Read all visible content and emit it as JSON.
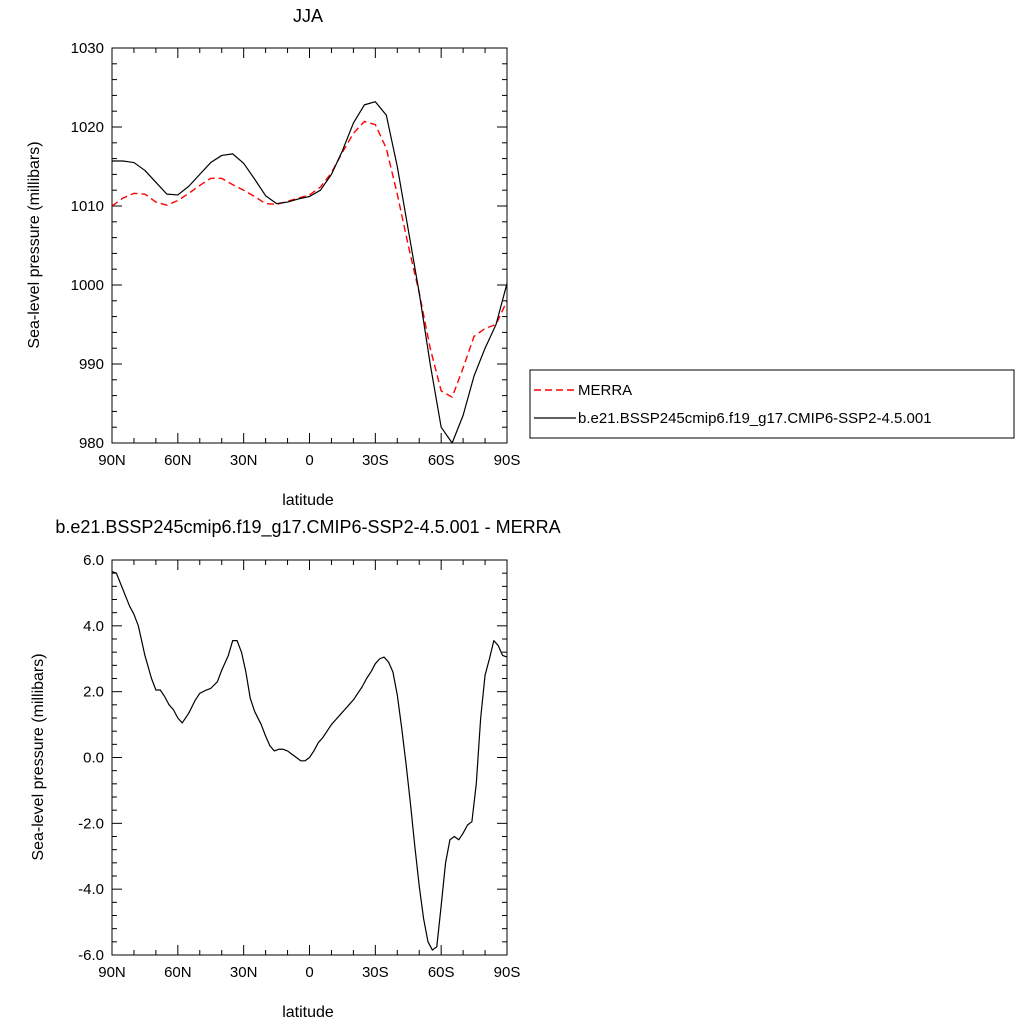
{
  "chart_data": [
    {
      "type": "line",
      "title": "JJA",
      "xlabel": "latitude",
      "ylabel": "Sea-level pressure (millibars)",
      "xlim": [
        90,
        -90
      ],
      "ylim": [
        980,
        1030
      ],
      "xticks": [
        90,
        60,
        30,
        0,
        -30,
        -60,
        -90
      ],
      "xtick_labels": [
        "90N",
        "60N",
        "30N",
        "0",
        "30S",
        "60S",
        "90S"
      ],
      "yticks": [
        980,
        990,
        1000,
        1010,
        1020,
        1030
      ],
      "ytick_labels": [
        "980",
        "990",
        "1000",
        "1010",
        "1020",
        "1030"
      ],
      "legend": {
        "placement": "right"
      },
      "series": [
        {
          "name": "MERRA",
          "color": "#ff0000",
          "dashed": true,
          "x": [
            90,
            85,
            80,
            75,
            70,
            65,
            60,
            55,
            50,
            45,
            40,
            35,
            30,
            25,
            20,
            15,
            10,
            5,
            0,
            -5,
            -10,
            -15,
            -20,
            -25,
            -30,
            -35,
            -40,
            -45,
            -50,
            -55,
            -60,
            -65,
            -70,
            -75,
            -80,
            -85,
            -90
          ],
          "y": [
            1010,
            1011,
            1011.6,
            1011.5,
            1010.5,
            1010.1,
            1010.7,
            1011.6,
            1012.6,
            1013.5,
            1013.5,
            1012.7,
            1012.0,
            1011.2,
            1010.3,
            1010.2,
            1010.6,
            1011,
            1011.4,
            1012.4,
            1014.2,
            1016.8,
            1019.2,
            1020.7,
            1020.3,
            1017.3,
            1011.5,
            1005,
            999,
            992,
            986.6,
            985.8,
            989.5,
            993.5,
            994.5,
            995,
            998
          ]
        },
        {
          "name": "b.e21.BSSP245cmip6.f19_g17.CMIP6-SSP2-4.5.001",
          "color": "#000000",
          "dashed": false,
          "x": [
            90,
            85,
            80,
            75,
            70,
            65,
            60,
            55,
            50,
            45,
            40,
            35,
            30,
            25,
            20,
            15,
            10,
            5,
            0,
            -5,
            -10,
            -15,
            -20,
            -25,
            -30,
            -35,
            -40,
            -45,
            -50,
            -55,
            -60,
            -65,
            -70,
            -75,
            -80,
            -85,
            -90
          ],
          "y": [
            1015.7,
            1015.7,
            1015.5,
            1014.5,
            1013,
            1011.5,
            1011.4,
            1012.5,
            1014,
            1015.5,
            1016.4,
            1016.6,
            1015.4,
            1013.4,
            1011.3,
            1010.3,
            1010.5,
            1010.9,
            1011.2,
            1012,
            1014,
            1017,
            1020.5,
            1022.8,
            1023.2,
            1021.5,
            1015,
            1007,
            999,
            990,
            982,
            980,
            983.5,
            988.5,
            992,
            995,
            1000.2
          ]
        }
      ]
    },
    {
      "type": "line",
      "title": "b.e21.BSSP245cmip6.f19_g17.CMIP6-SSP2-4.5.001 - MERRA",
      "xlabel": "latitude",
      "ylabel": "Sea-level pressure (millibars)",
      "xlim": [
        90,
        -90
      ],
      "ylim": [
        -6,
        6
      ],
      "xticks": [
        90,
        60,
        30,
        0,
        -30,
        -60,
        -90
      ],
      "xtick_labels": [
        "90N",
        "60N",
        "30N",
        "0",
        "30S",
        "60S",
        "90S"
      ],
      "yticks": [
        -6,
        -4,
        -2,
        0,
        2,
        4,
        6
      ],
      "ytick_labels": [
        "-6.0",
        "-4.0",
        "-2.0",
        "0.0",
        "2.0",
        "4.0",
        "6.0"
      ],
      "series": [
        {
          "color": "#000000",
          "dashed": false,
          "x": [
            90,
            88,
            85,
            82,
            80,
            78,
            75,
            72,
            70,
            68,
            66,
            64,
            62,
            60,
            58,
            55,
            52,
            50,
            47,
            45,
            42,
            40,
            37,
            35,
            33,
            31,
            29,
            27,
            25,
            22,
            20,
            18,
            16,
            14,
            12,
            10,
            8,
            6,
            4,
            2,
            0,
            -2,
            -4,
            -6,
            -8,
            -10,
            -12,
            -14,
            -16,
            -18,
            -20,
            -22,
            -24,
            -26,
            -28,
            -30,
            -32,
            -34,
            -36,
            -38,
            -40,
            -42,
            -44,
            -46,
            -48,
            -50,
            -52,
            -54,
            -56,
            -58,
            -60,
            -62,
            -64,
            -66,
            -68,
            -70,
            -72,
            -74,
            -76,
            -78,
            -80,
            -82,
            -84,
            -86,
            -88,
            -90
          ],
          "y": [
            5.65,
            5.6,
            5.1,
            4.6,
            4.35,
            4.0,
            3.1,
            2.4,
            2.05,
            2.05,
            1.85,
            1.6,
            1.45,
            1.2,
            1.05,
            1.35,
            1.75,
            1.95,
            2.05,
            2.1,
            2.3,
            2.65,
            3.1,
            3.55,
            3.55,
            3.2,
            2.6,
            1.8,
            1.4,
            1.0,
            0.65,
            0.35,
            0.2,
            0.25,
            0.25,
            0.2,
            0.1,
            0.0,
            -0.1,
            -0.1,
            0.0,
            0.2,
            0.45,
            0.6,
            0.8,
            1.0,
            1.15,
            1.3,
            1.45,
            1.6,
            1.75,
            1.95,
            2.15,
            2.4,
            2.6,
            2.85,
            3.0,
            3.05,
            2.9,
            2.6,
            1.9,
            0.9,
            -0.2,
            -1.4,
            -2.7,
            -3.9,
            -4.9,
            -5.6,
            -5.85,
            -5.75,
            -4.5,
            -3.2,
            -2.5,
            -2.4,
            -2.5,
            -2.3,
            -2.05,
            -1.95,
            -0.8,
            1.2,
            2.5,
            3.0,
            3.55,
            3.4,
            3.1,
            3.05
          ]
        }
      ]
    }
  ]
}
